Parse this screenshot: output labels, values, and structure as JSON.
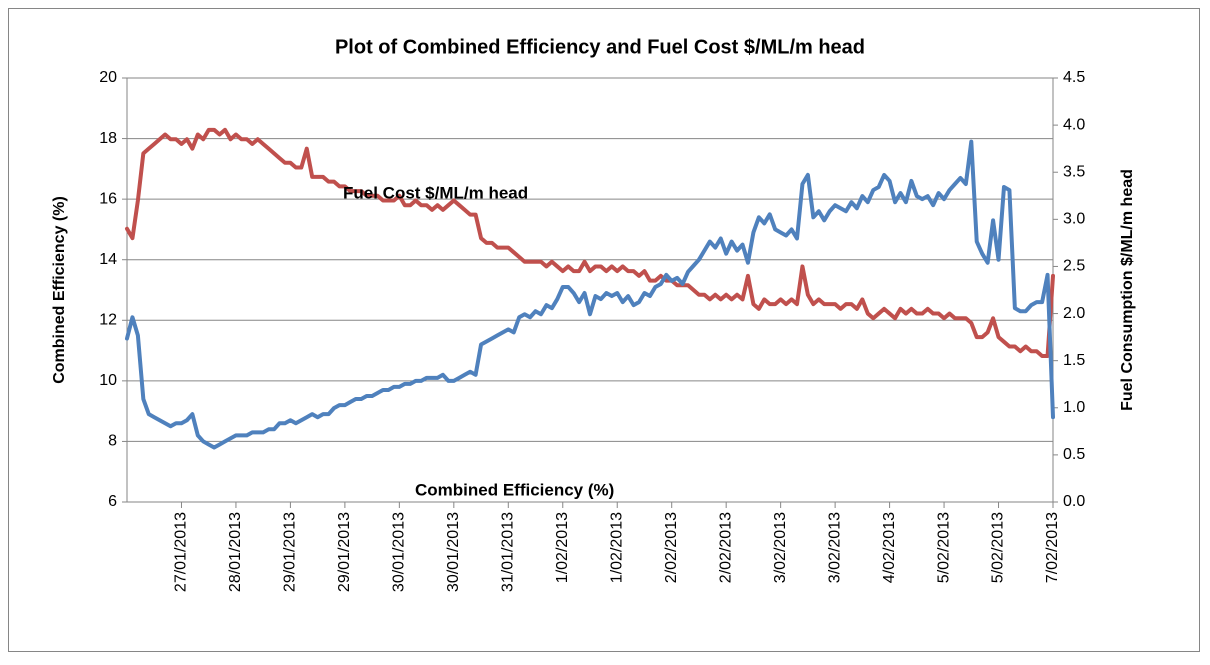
{
  "chart_data": {
    "type": "line",
    "title": "Plot of Combined Efficiency and Fuel Cost $/ML/m head",
    "y_label": "Combined Efficiency (%)",
    "y2_label": "Fuel Consumption $/ML/m head",
    "annotations": [
      "Fuel Cost $/ML/m head",
      "Combined Efficiency (%)"
    ],
    "ylim": [
      6,
      20
    ],
    "yticks": [
      6,
      8,
      10,
      12,
      14,
      16,
      18,
      20
    ],
    "y2lim": [
      0,
      4.5
    ],
    "y2ticks": [
      {
        "value": 0,
        "label": "0.0"
      },
      0.5,
      {
        "value": 1,
        "label": "1.0"
      },
      1.5,
      {
        "value": 2,
        "label": "2.0"
      },
      2.5,
      {
        "value": 3,
        "label": "3.0"
      },
      3.5,
      {
        "value": 4,
        "label": "4.0"
      },
      4.5
    ],
    "grid": true,
    "categories": [
      null,
      null,
      null,
      null,
      null,
      null,
      null,
      null,
      null,
      null,
      "27/01/2013",
      null,
      null,
      null,
      null,
      null,
      null,
      null,
      null,
      null,
      "28/01/2013",
      null,
      null,
      null,
      null,
      null,
      null,
      null,
      null,
      null,
      "29/01/2013",
      null,
      null,
      null,
      null,
      null,
      null,
      null,
      null,
      null,
      "29/01/2013",
      null,
      null,
      null,
      null,
      null,
      null,
      null,
      null,
      null,
      "30/01/2013",
      null,
      null,
      null,
      null,
      null,
      null,
      null,
      null,
      null,
      "30/01/2013",
      null,
      null,
      null,
      null,
      null,
      null,
      null,
      null,
      null,
      "31/01/2013",
      null,
      null,
      null,
      null,
      null,
      null,
      null,
      null,
      null,
      "1/02/2013",
      null,
      null,
      null,
      null,
      null,
      null,
      null,
      null,
      null,
      "1/02/2013",
      null,
      null,
      null,
      null,
      null,
      null,
      null,
      null,
      null,
      "2/02/2013",
      null,
      null,
      null,
      null,
      null,
      null,
      null,
      null,
      null,
      "2/02/2013",
      null,
      null,
      null,
      null,
      null,
      null,
      null,
      null,
      null,
      "3/02/2013",
      null,
      null,
      null,
      null,
      null,
      null,
      null,
      null,
      null,
      "3/02/2013",
      null,
      null,
      null,
      null,
      null,
      null,
      null,
      null,
      null,
      "4/02/2013",
      null,
      null,
      null,
      null,
      null,
      null,
      null,
      null,
      null,
      "5/02/2013",
      null,
      null,
      null,
      null,
      null,
      null,
      null,
      null,
      null,
      "5/02/2013",
      null,
      null,
      null,
      null,
      null,
      null,
      null,
      null,
      null,
      "7/02/2013"
    ],
    "series": [
      {
        "name": "Fuel Cost $/ML/m head",
        "color": "#c0504d",
        "axis": "y2",
        "values": [
          2.9,
          2.8,
          3.2,
          3.7,
          3.75,
          3.8,
          3.85,
          3.9,
          3.85,
          3.85,
          3.8,
          3.85,
          3.75,
          3.9,
          3.85,
          3.95,
          3.95,
          3.9,
          3.95,
          3.85,
          3.9,
          3.85,
          3.85,
          3.8,
          3.85,
          3.8,
          3.75,
          3.7,
          3.65,
          3.6,
          3.6,
          3.55,
          3.55,
          3.75,
          3.45,
          3.45,
          3.45,
          3.4,
          3.4,
          3.35,
          3.35,
          3.3,
          3.3,
          3.3,
          3.25,
          3.25,
          3.25,
          3.2,
          3.2,
          3.2,
          3.25,
          3.15,
          3.15,
          3.2,
          3.15,
          3.15,
          3.1,
          3.15,
          3.1,
          3.15,
          3.2,
          3.15,
          3.1,
          3.05,
          3.05,
          2.8,
          2.75,
          2.75,
          2.7,
          2.7,
          2.7,
          2.65,
          2.6,
          2.55,
          2.55,
          2.55,
          2.55,
          2.5,
          2.55,
          2.5,
          2.45,
          2.5,
          2.45,
          2.45,
          2.55,
          2.45,
          2.5,
          2.5,
          2.45,
          2.5,
          2.45,
          2.5,
          2.45,
          2.45,
          2.4,
          2.45,
          2.35,
          2.35,
          2.4,
          2.35,
          2.35,
          2.3,
          2.3,
          2.3,
          2.25,
          2.2,
          2.2,
          2.15,
          2.2,
          2.15,
          2.2,
          2.15,
          2.2,
          2.15,
          2.4,
          2.1,
          2.05,
          2.15,
          2.1,
          2.1,
          2.15,
          2.1,
          2.15,
          2.1,
          2.5,
          2.2,
          2.1,
          2.15,
          2.1,
          2.1,
          2.1,
          2.05,
          2.1,
          2.1,
          2.05,
          2.15,
          2.0,
          1.95,
          2.0,
          2.05,
          2.0,
          1.95,
          2.05,
          2.0,
          2.05,
          2.0,
          2.0,
          2.05,
          2.0,
          2.0,
          1.95,
          2.0,
          1.95,
          1.95,
          1.95,
          1.9,
          1.75,
          1.75,
          1.8,
          1.95,
          1.75,
          1.7,
          1.65,
          1.65,
          1.6,
          1.65,
          1.6,
          1.6,
          1.55,
          1.55,
          2.4
        ]
      },
      {
        "name": "Combined Efficiency (%)",
        "color": "#4f81bd",
        "values": [
          11.4,
          12.1,
          11.5,
          9.4,
          8.9,
          8.8,
          8.7,
          8.6,
          8.5,
          8.6,
          8.6,
          8.7,
          8.9,
          8.2,
          8.0,
          7.9,
          7.8,
          7.9,
          8.0,
          8.1,
          8.2,
          8.2,
          8.2,
          8.3,
          8.3,
          8.3,
          8.4,
          8.4,
          8.6,
          8.6,
          8.7,
          8.6,
          8.7,
          8.8,
          8.9,
          8.8,
          8.9,
          8.9,
          9.1,
          9.2,
          9.2,
          9.3,
          9.4,
          9.4,
          9.5,
          9.5,
          9.6,
          9.7,
          9.7,
          9.8,
          9.8,
          9.9,
          9.9,
          10.0,
          10.0,
          10.1,
          10.1,
          10.1,
          10.2,
          10.0,
          10.0,
          10.1,
          10.2,
          10.3,
          10.2,
          11.2,
          11.3,
          11.4,
          11.5,
          11.6,
          11.7,
          11.6,
          12.1,
          12.2,
          12.1,
          12.3,
          12.2,
          12.5,
          12.4,
          12.7,
          13.1,
          13.1,
          12.9,
          12.6,
          12.9,
          12.2,
          12.8,
          12.7,
          12.9,
          12.8,
          12.9,
          12.6,
          12.8,
          12.5,
          12.6,
          12.9,
          12.8,
          13.1,
          13.2,
          13.5,
          13.3,
          13.4,
          13.2,
          13.6,
          13.8,
          14.0,
          14.3,
          14.6,
          14.4,
          14.7,
          14.2,
          14.6,
          14.3,
          14.5,
          13.9,
          14.9,
          15.4,
          15.2,
          15.5,
          15.0,
          14.9,
          14.8,
          15.0,
          14.7,
          16.5,
          16.8,
          15.4,
          15.6,
          15.3,
          15.6,
          15.8,
          15.7,
          15.6,
          15.9,
          15.7,
          16.1,
          15.9,
          16.3,
          16.4,
          16.8,
          16.6,
          15.9,
          16.2,
          15.9,
          16.6,
          16.1,
          16.0,
          16.1,
          15.8,
          16.2,
          16.0,
          16.3,
          16.5,
          16.7,
          16.5,
          17.9,
          14.6,
          14.2,
          13.9,
          15.3,
          14.0,
          16.4,
          16.3,
          12.4,
          12.3,
          12.3,
          12.5,
          12.6,
          12.6,
          13.5,
          8.8
        ]
      }
    ]
  }
}
